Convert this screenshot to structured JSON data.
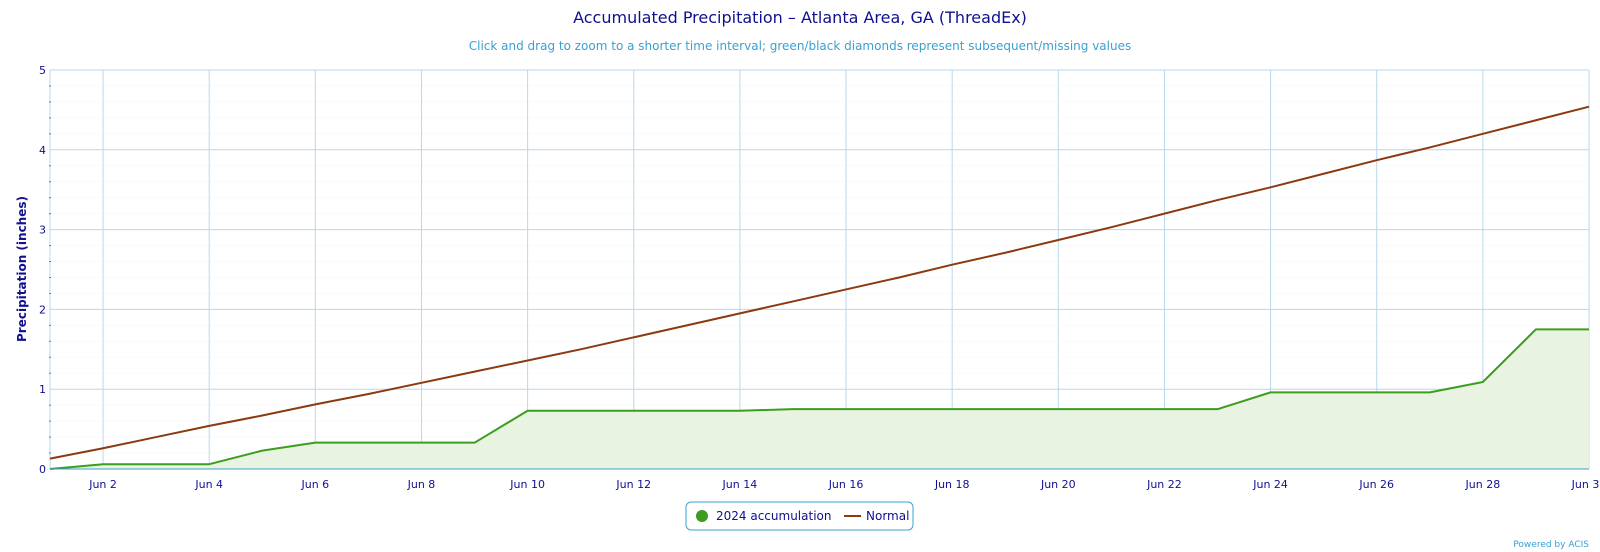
{
  "chart_data": {
    "type": "line",
    "title": "Accumulated Precipitation – Atlanta Area, GA (ThreadEx)",
    "subtitle": "Click and drag to zoom to a shorter time interval; green/black diamonds represent subsequent/missing values",
    "ylabel": "Precipitation (inches)",
    "xlabel": "",
    "ylim": [
      0,
      5
    ],
    "y_ticks": [
      "0",
      "1",
      "2",
      "3",
      "4",
      "5"
    ],
    "x_range_days": [
      1,
      30
    ],
    "x_ticks": [
      {
        "day": 2,
        "label": "Jun 2"
      },
      {
        "day": 4,
        "label": "Jun 4"
      },
      {
        "day": 6,
        "label": "Jun 6"
      },
      {
        "day": 8,
        "label": "Jun 8"
      },
      {
        "day": 10,
        "label": "Jun 10"
      },
      {
        "day": 12,
        "label": "Jun 12"
      },
      {
        "day": 14,
        "label": "Jun 14"
      },
      {
        "day": 16,
        "label": "Jun 16"
      },
      {
        "day": 18,
        "label": "Jun 18"
      },
      {
        "day": 20,
        "label": "Jun 20"
      },
      {
        "day": 22,
        "label": "Jun 22"
      },
      {
        "day": 24,
        "label": "Jun 24"
      },
      {
        "day": 26,
        "label": "Jun 26"
      },
      {
        "day": 28,
        "label": "Jun 28"
      },
      {
        "day": 30,
        "label": "Jun 30"
      }
    ],
    "grid": true,
    "legend_position": "bottom-center",
    "series": [
      {
        "name": "2024 accumulation",
        "style": "area",
        "color": "#3c9d1e",
        "fill": "#e8f3e1",
        "x": [
          1,
          2,
          3,
          4,
          5,
          6,
          7,
          8,
          9,
          10,
          11,
          12,
          13,
          14,
          15,
          16,
          17,
          18,
          19,
          20,
          21,
          22,
          23,
          24,
          25,
          26,
          27,
          28,
          29,
          30
        ],
        "values": [
          0.0,
          0.06,
          0.06,
          0.06,
          0.23,
          0.33,
          0.33,
          0.33,
          0.33,
          0.73,
          0.73,
          0.73,
          0.73,
          0.73,
          0.75,
          0.75,
          0.75,
          0.75,
          0.75,
          0.75,
          0.75,
          0.75,
          0.75,
          0.96,
          0.96,
          0.96,
          0.96,
          1.09,
          1.75,
          1.75
        ]
      },
      {
        "name": "Normal",
        "style": "line",
        "color": "#8b3a0f",
        "x": [
          1,
          2,
          3,
          4,
          5,
          6,
          7,
          8,
          9,
          10,
          11,
          12,
          13,
          14,
          15,
          16,
          17,
          18,
          19,
          20,
          21,
          22,
          23,
          24,
          25,
          26,
          27,
          28,
          29,
          30
        ],
        "values": [
          0.13,
          0.26,
          0.4,
          0.54,
          0.67,
          0.81,
          0.94,
          1.08,
          1.22,
          1.36,
          1.5,
          1.65,
          1.8,
          1.95,
          2.1,
          2.25,
          2.4,
          2.56,
          2.71,
          2.87,
          3.03,
          3.2,
          3.37,
          3.53,
          3.7,
          3.87,
          4.03,
          4.2,
          4.37,
          4.54
        ]
      }
    ]
  },
  "credits": "Powered by ACIS",
  "colors": {
    "title": "#101090",
    "subtitle": "#3aa0d0",
    "grid": "#b8d8ec",
    "axis": "#3aa0d0"
  }
}
